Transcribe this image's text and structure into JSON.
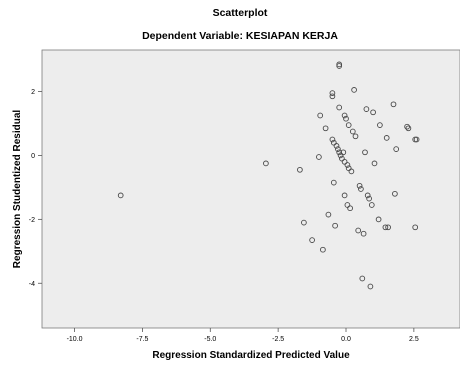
{
  "chart_data": {
    "type": "scatter",
    "title": "Scatterplot",
    "subtitle": "Dependent Variable: KESIAPAN KERJA",
    "xlabel": "Regression Standardized Predicted Value",
    "ylabel": "Regression Studentized Residual",
    "xlim": [
      -11.2,
      4.2
    ],
    "ylim": [
      -5.4,
      3.3
    ],
    "xticks": [
      -10.0,
      -7.5,
      -5.0,
      -2.5,
      0.0,
      2.5
    ],
    "xtick_labels": [
      "-10.0",
      "-7.5",
      "-5.0",
      "-2.5",
      "0.0",
      "2.5"
    ],
    "yticks": [
      -4,
      -2,
      0,
      2
    ],
    "ytick_labels": [
      "-4",
      "-2",
      "0",
      "2"
    ],
    "grid": false,
    "colors": {
      "plot_background": "#ededed",
      "marker_stroke": "#4a4a4a"
    },
    "points": [
      {
        "x": -8.3,
        "y": -1.25
      },
      {
        "x": -2.95,
        "y": -0.25
      },
      {
        "x": -1.7,
        "y": -0.45
      },
      {
        "x": -1.55,
        "y": -2.1
      },
      {
        "x": -1.25,
        "y": -2.65
      },
      {
        "x": -1.0,
        "y": -0.05
      },
      {
        "x": -0.95,
        "y": 1.25
      },
      {
        "x": -0.85,
        "y": -2.95
      },
      {
        "x": -0.75,
        "y": 0.85
      },
      {
        "x": -0.65,
        "y": -1.85
      },
      {
        "x": -0.5,
        "y": 1.95
      },
      {
        "x": -0.5,
        "y": 1.85
      },
      {
        "x": -0.5,
        "y": 0.5
      },
      {
        "x": -0.45,
        "y": 0.4
      },
      {
        "x": -0.45,
        "y": -0.85
      },
      {
        "x": -0.4,
        "y": -2.2
      },
      {
        "x": -0.35,
        "y": 0.3
      },
      {
        "x": -0.3,
        "y": 0.2
      },
      {
        "x": -0.25,
        "y": 2.85
      },
      {
        "x": -0.25,
        "y": 2.8
      },
      {
        "x": -0.25,
        "y": 1.5
      },
      {
        "x": -0.25,
        "y": 0.1
      },
      {
        "x": -0.2,
        "y": 0.0
      },
      {
        "x": -0.15,
        "y": -0.1
      },
      {
        "x": -0.1,
        "y": 0.1
      },
      {
        "x": -0.05,
        "y": 1.25
      },
      {
        "x": -0.05,
        "y": -0.2
      },
      {
        "x": -0.05,
        "y": -1.25
      },
      {
        "x": 0.0,
        "y": 1.15
      },
      {
        "x": 0.05,
        "y": -0.3
      },
      {
        "x": 0.05,
        "y": -1.55
      },
      {
        "x": 0.1,
        "y": 0.95
      },
      {
        "x": 0.1,
        "y": -0.4
      },
      {
        "x": 0.15,
        "y": -1.65
      },
      {
        "x": 0.2,
        "y": -0.5
      },
      {
        "x": 0.25,
        "y": 0.75
      },
      {
        "x": 0.3,
        "y": 2.05
      },
      {
        "x": 0.35,
        "y": 0.6
      },
      {
        "x": 0.45,
        "y": -2.35
      },
      {
        "x": 0.5,
        "y": -0.95
      },
      {
        "x": 0.55,
        "y": -1.05
      },
      {
        "x": 0.6,
        "y": -3.85
      },
      {
        "x": 0.65,
        "y": -2.45
      },
      {
        "x": 0.7,
        "y": 0.1
      },
      {
        "x": 0.75,
        "y": 1.45
      },
      {
        "x": 0.8,
        "y": -1.25
      },
      {
        "x": 0.85,
        "y": -1.35
      },
      {
        "x": 0.9,
        "y": -4.1
      },
      {
        "x": 0.95,
        "y": -1.55
      },
      {
        "x": 1.0,
        "y": 1.35
      },
      {
        "x": 1.05,
        "y": -0.25
      },
      {
        "x": 1.2,
        "y": -2.0
      },
      {
        "x": 1.25,
        "y": 0.95
      },
      {
        "x": 1.45,
        "y": -2.25
      },
      {
        "x": 1.5,
        "y": 0.55
      },
      {
        "x": 1.55,
        "y": -2.25
      },
      {
        "x": 1.75,
        "y": 1.6
      },
      {
        "x": 1.8,
        "y": -1.2
      },
      {
        "x": 1.85,
        "y": 0.2
      },
      {
        "x": 2.25,
        "y": 0.9
      },
      {
        "x": 2.3,
        "y": 0.85
      },
      {
        "x": 2.55,
        "y": 0.5
      },
      {
        "x": 2.6,
        "y": 0.5
      },
      {
        "x": 2.55,
        "y": -2.25
      }
    ]
  }
}
